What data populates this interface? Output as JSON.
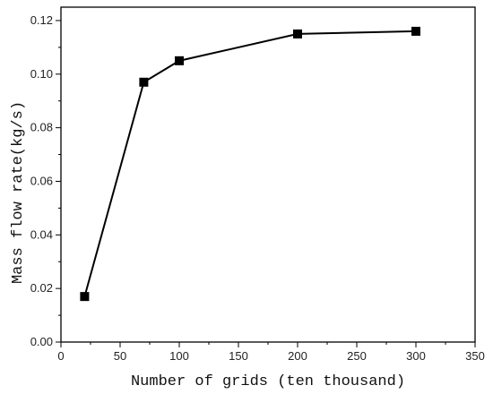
{
  "chart_data": {
    "type": "line",
    "title": "",
    "xlabel": "Number of grids (ten thousand)",
    "ylabel": "Mass flow rate(kg/s)",
    "x": [
      20,
      70,
      100,
      200,
      300
    ],
    "series": [
      {
        "values": [
          0.017,
          0.097,
          0.105,
          0.115,
          0.116
        ]
      }
    ],
    "xlim": [
      0,
      350
    ],
    "ylim": [
      0,
      0.125
    ],
    "xticks": [
      "0",
      "50",
      "100",
      "150",
      "200",
      "250",
      "300",
      "350"
    ],
    "yticks": [
      "0.00",
      "0.02",
      "0.04",
      "0.06",
      "0.08",
      "0.10",
      "0.12"
    ],
    "grid": false,
    "legend": "none",
    "marker": "square",
    "line_color": "#000000"
  }
}
